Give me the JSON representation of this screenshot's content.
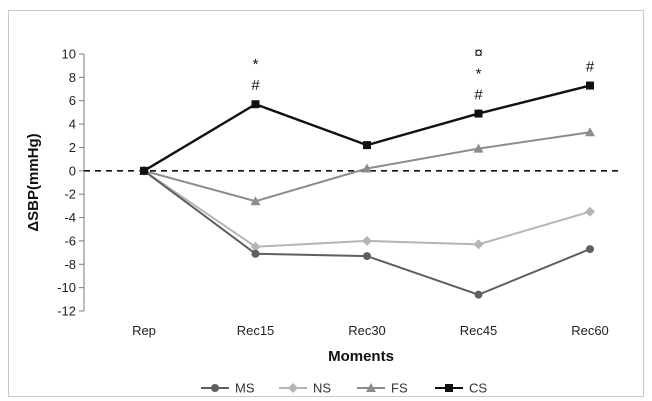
{
  "chart_data": {
    "type": "line",
    "xlabel": "Moments",
    "ylabel": "ΔSBP(mmHg)",
    "categories": [
      "Rep",
      "Rec15",
      "Rec30",
      "Rec45",
      "Rec60"
    ],
    "ylim": [
      -12,
      10
    ],
    "yticks": [
      10,
      8,
      6,
      4,
      2,
      0,
      -2,
      -4,
      -6,
      -8,
      -10,
      -12
    ],
    "grid": false,
    "reference_line": {
      "y": 0,
      "style": "dashed"
    },
    "legend": {
      "placement": "bottom"
    },
    "series": [
      {
        "name": "MS",
        "marker": "circle",
        "color": "#5f5f5f",
        "values": [
          0,
          -7.1,
          -7.3,
          -10.6,
          -6.7
        ]
      },
      {
        "name": "NS",
        "marker": "diamond",
        "color": "#b5b5b5",
        "values": [
          0,
          -6.5,
          -6.0,
          -6.3,
          -3.5
        ]
      },
      {
        "name": "FS",
        "marker": "triangle",
        "color": "#8c8c8c",
        "values": [
          0,
          -2.6,
          0.2,
          1.9,
          3.3
        ]
      },
      {
        "name": "CS",
        "marker": "square",
        "color": "#111111",
        "values": [
          0,
          5.7,
          2.2,
          4.9,
          7.3
        ]
      }
    ],
    "annotations": [
      {
        "category": "Rec15",
        "labels": [
          "*",
          "#"
        ]
      },
      {
        "category": "Rec45",
        "labels": [
          "¤",
          "*",
          "#"
        ]
      },
      {
        "category": "Rec60",
        "labels": [
          "#"
        ]
      }
    ]
  }
}
